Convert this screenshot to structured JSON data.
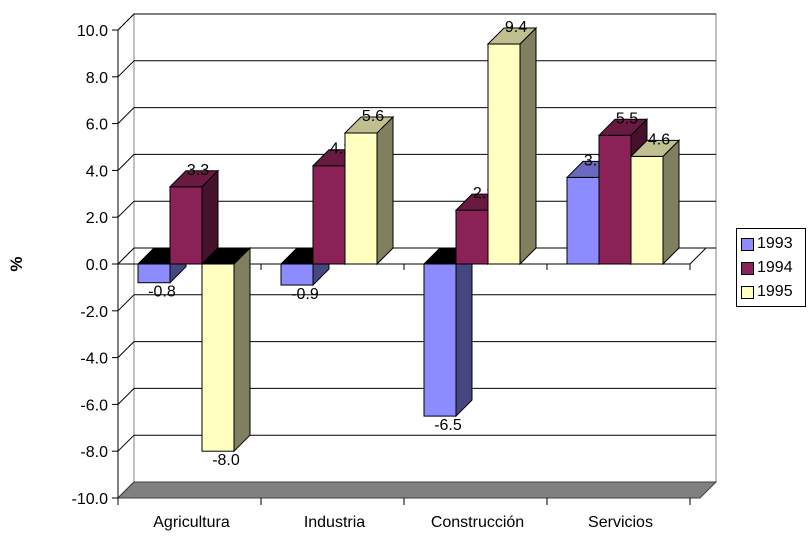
{
  "chart_data": {
    "type": "bar",
    "title": "",
    "xlabel": "",
    "ylabel": "%",
    "ylim": [
      -10,
      10
    ],
    "yticks": [
      "10.0",
      "8.0",
      "6.0",
      "4.0",
      "2.0",
      "0.0",
      "-2.0",
      "-4.0",
      "-6.0",
      "-8.0",
      "-10.0"
    ],
    "categories": [
      "Agricultura",
      "Industria",
      "Construcción",
      "Servicios"
    ],
    "series": [
      {
        "name": "1993",
        "values": [
          -0.8,
          -0.9,
          -6.5,
          3.7
        ],
        "labels": [
          "-0.8",
          "-0.9",
          "-6.5",
          "3.7"
        ],
        "color": "#8c8cff"
      },
      {
        "name": "1994",
        "values": [
          3.3,
          4.2,
          2.3,
          5.5
        ],
        "labels": [
          "3.3",
          "4.2",
          "2.3",
          "5.5"
        ],
        "color": "#8b2257"
      },
      {
        "name": "1995",
        "values": [
          -8.0,
          5.6,
          9.4,
          4.6
        ],
        "labels": [
          "-8.0",
          "5.6",
          "9.4",
          "4.6"
        ],
        "color": "#ffffc0"
      }
    ],
    "grid": true,
    "legend_position": "right",
    "style": "3d-clustered-column"
  }
}
